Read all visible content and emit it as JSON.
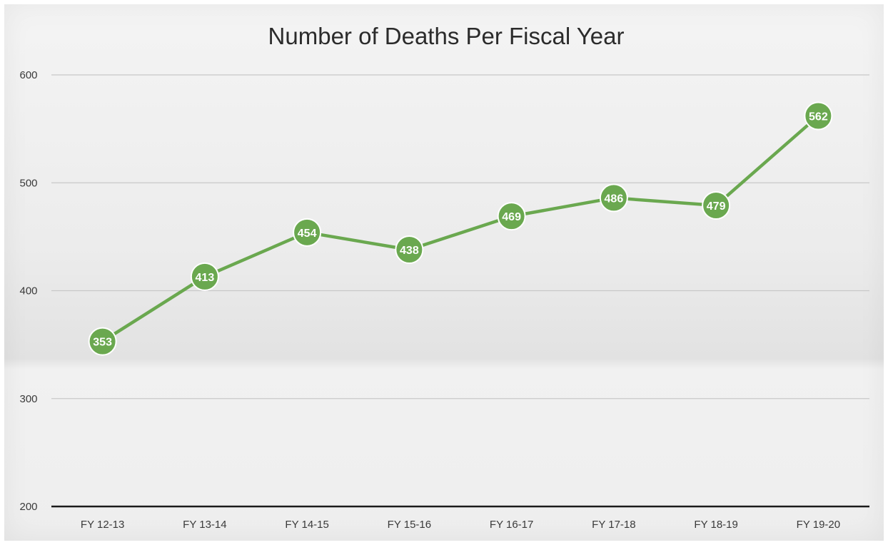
{
  "chart_data": {
    "type": "line",
    "title": "Number of Deaths Per Fiscal Year",
    "xlabel": "",
    "ylabel": "",
    "categories": [
      "FY 12-13",
      "FY 13-14",
      "FY 14-15",
      "FY 15-16",
      "FY 16-17",
      "FY 17-18",
      "FY 18-19",
      "FY 19-20"
    ],
    "series": [
      {
        "values": [
          353,
          413,
          454,
          438,
          469,
          486,
          479,
          562
        ]
      }
    ],
    "ylim": [
      200,
      600
    ],
    "yticks": [
      200,
      300,
      400,
      500,
      600
    ],
    "grid": true,
    "legend": "none",
    "data_labels": true,
    "colors": {
      "line": "#6aa84f",
      "marker": "#6aa84f",
      "marker_edge": "#ffffff",
      "grid": "#c8c8c8",
      "axis": "#1a1a1a",
      "label": "#ffffff"
    }
  }
}
